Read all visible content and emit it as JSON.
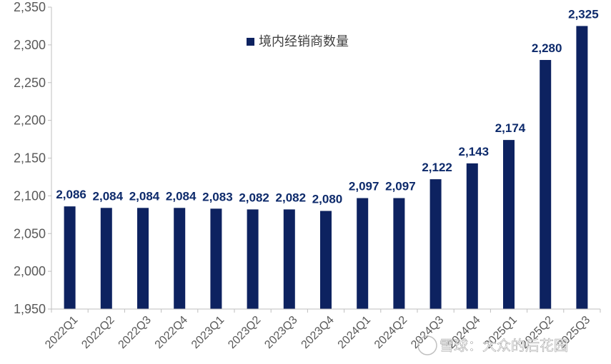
{
  "chart_data": {
    "type": "bar",
    "categories": [
      "2022Q1",
      "2022Q2",
      "2022Q3",
      "2022Q4",
      "2023Q1",
      "2023Q2",
      "2023Q3",
      "2023Q4",
      "2024Q1",
      "2024Q2",
      "2024Q3",
      "2024Q4",
      "2025Q1",
      "2025Q2",
      "2025Q3"
    ],
    "series": [
      {
        "name": "境内经销商数量",
        "values": [
          2086,
          2084,
          2084,
          2084,
          2083,
          2082,
          2082,
          2080,
          2097,
          2097,
          2122,
          2143,
          2174,
          2280,
          2325
        ],
        "labels": [
          "2,086",
          "2,084",
          "2,084",
          "2,084",
          "2,083",
          "2,082",
          "2,082",
          "2,080",
          "2,097",
          "2,097",
          "2,122",
          "2,143",
          "2,174",
          "2,280",
          "2,325"
        ]
      }
    ],
    "yticks": [
      1950,
      2000,
      2050,
      2100,
      2150,
      2200,
      2250,
      2300,
      2350
    ],
    "ytick_labels": [
      "1,950",
      "2,000",
      "2,050",
      "2,100",
      "2,150",
      "2,200",
      "2,250",
      "2,300",
      "2,350"
    ],
    "ylim": [
      1950,
      2350
    ],
    "legend_position": "top-center",
    "grid": false,
    "colors": {
      "bar": "#0d2260",
      "label": "#0d2a6b",
      "axis": "#bfbfbf"
    }
  },
  "watermark": {
    "text": "雪球：大众的后花园"
  }
}
